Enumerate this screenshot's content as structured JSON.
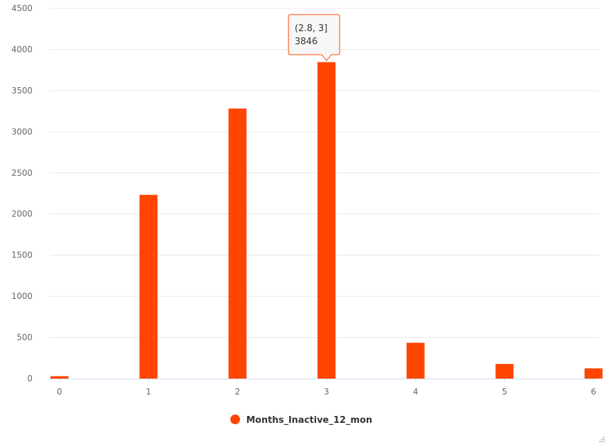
{
  "chart_data": {
    "type": "bar",
    "series": [
      {
        "name": "Months_Inactive_12_mon",
        "x": [
          0,
          1,
          2,
          3,
          4,
          5,
          6
        ],
        "values": [
          29,
          2233,
          3282,
          3846,
          435,
          178,
          124
        ]
      }
    ],
    "x_ticks": [
      "0",
      "1",
      "2",
      "3",
      "4",
      "5",
      "6"
    ],
    "y_ticks": [
      "0",
      "500",
      "1000",
      "1500",
      "2000",
      "2500",
      "3000",
      "3500",
      "4000",
      "4500"
    ],
    "xlim": [
      0,
      6
    ],
    "ylim": [
      0,
      4500
    ],
    "grid": "horizontal",
    "legend_position": "bottom-center",
    "color": "#ff4500",
    "tooltip": {
      "label": "(2.8, 3]",
      "value": "3846",
      "bar_index": 3
    }
  }
}
